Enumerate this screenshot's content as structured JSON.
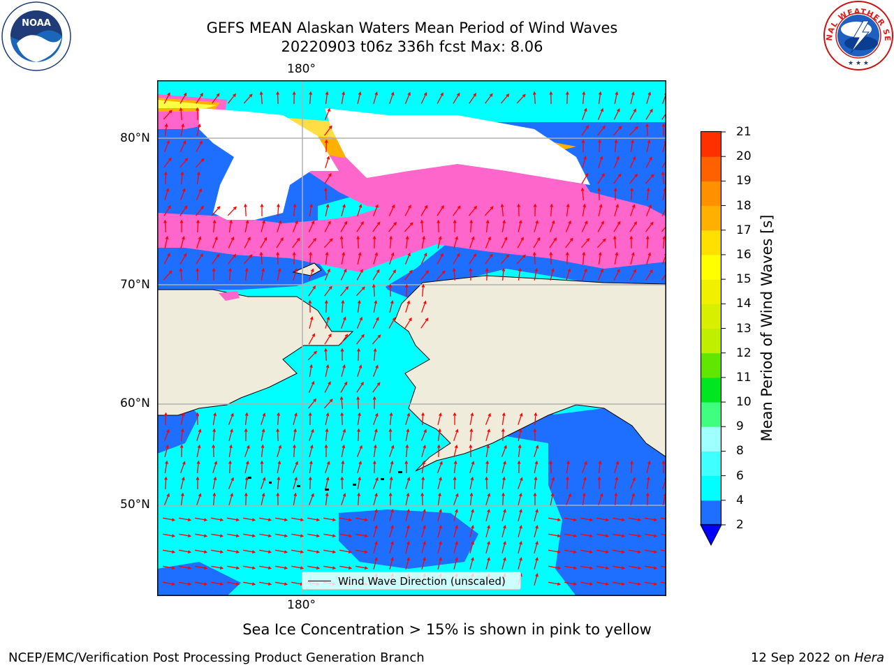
{
  "header": {
    "title_line1": "GEFS MEAN Alaskan Waters Mean Period of Wind Waves",
    "title_line2": "20220903 t06z 336h fcst   Max: 8.06"
  },
  "logos": {
    "left": "NOAA",
    "right_text": "NATIONAL WEATHER SERVICE"
  },
  "map": {
    "lon_labels_top": [
      "180°"
    ],
    "lon_labels_bottom": [
      "180°"
    ],
    "lat_labels": [
      "80°N",
      "70°N",
      "60°N",
      "50°N"
    ],
    "legend_label": "Wind Wave Direction (unscaled)",
    "vector_color": "#ff0000",
    "land_color": "#efecdc"
  },
  "colorbar": {
    "label": "Mean Period of Wind Waves [s]",
    "ticks": [
      "2",
      "4",
      "6",
      "8",
      "9",
      "10",
      "11",
      "12",
      "13",
      "14",
      "15",
      "16",
      "17",
      "18",
      "19",
      "20",
      "21"
    ],
    "colors": [
      "#1e6eff",
      "#00ffff",
      "#40ffff",
      "#a0ffff",
      "#40ff80",
      "#00e620",
      "#60e600",
      "#c0f000",
      "#d8f000",
      "#f0f000",
      "#ffff00",
      "#ffe000",
      "#ffb000",
      "#ff9000",
      "#ff6000",
      "#ff3000",
      "#ff0000"
    ],
    "underflow_color": "#0000ff"
  },
  "notes": {
    "ice": "Sea Ice Concentration > 15% is shown in pink to yellow"
  },
  "footer": {
    "left": "NCEP/EMC/Verification Post Processing Product Generation Branch",
    "right_date": "12 Sep 2022 on",
    "right_machine": "Hera"
  }
}
